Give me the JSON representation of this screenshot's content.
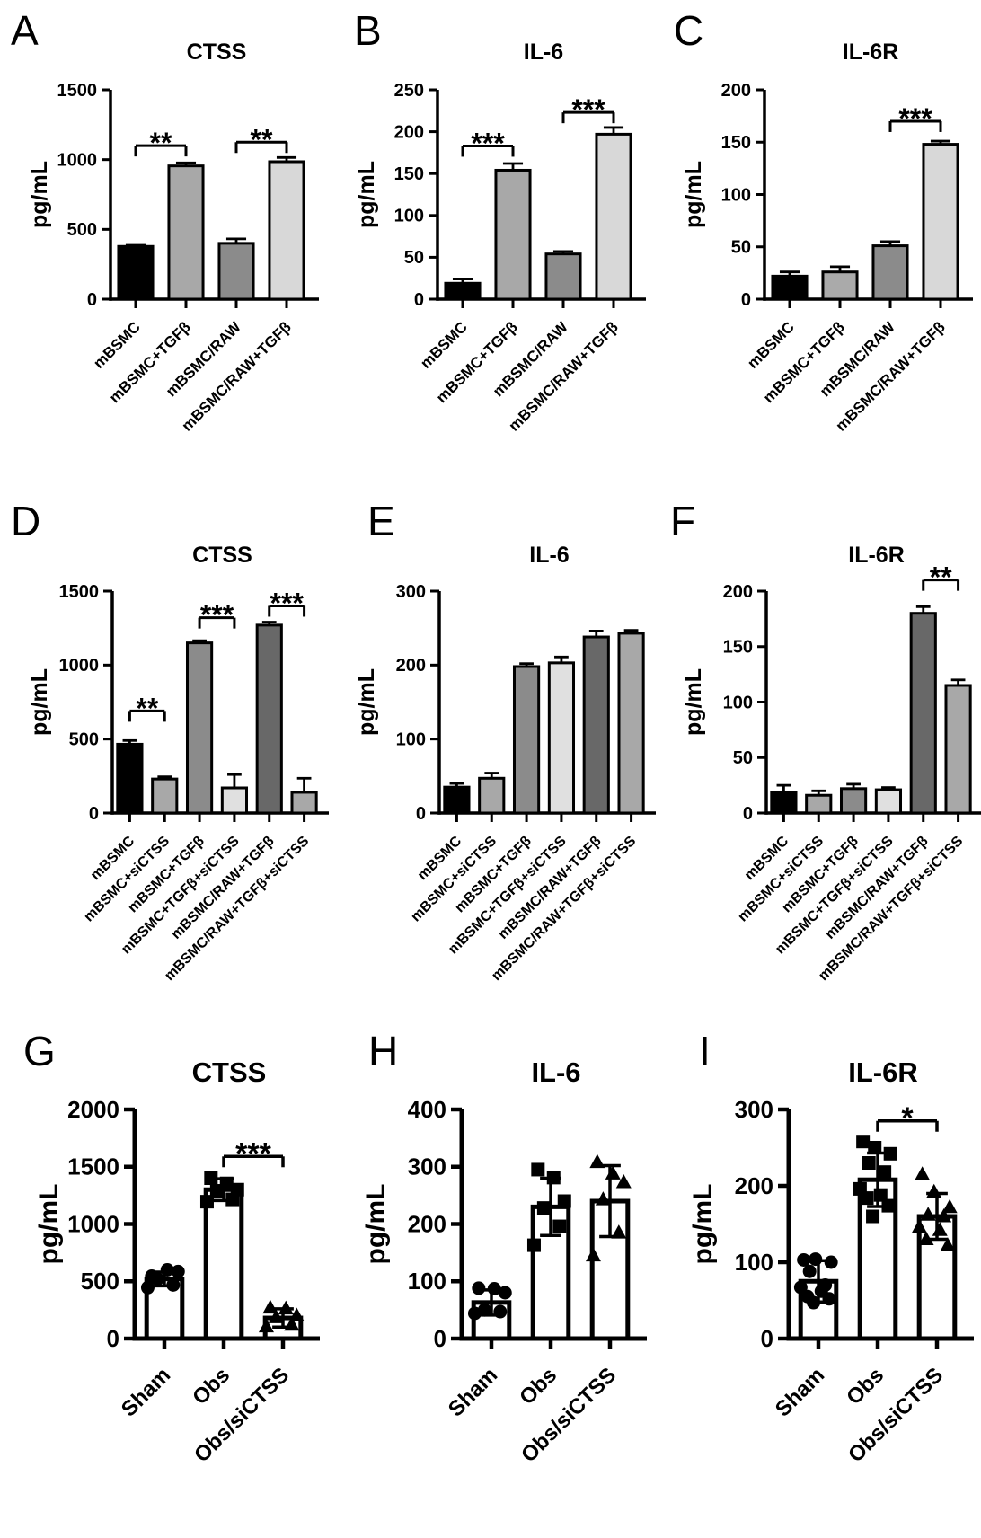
{
  "figure": {
    "background": "#ffffff",
    "text_color": "#000000",
    "y_axis_unit": "pg/mL"
  },
  "chart_data": [
    {
      "panel": "A",
      "type": "bar",
      "title": "CTSS",
      "ylabel": "pg/mL",
      "ylim": [
        0,
        1500
      ],
      "yticks": [
        0,
        500,
        1000,
        1500
      ],
      "grid": false,
      "legend": "none",
      "categories": [
        "mBSMC",
        "mBSMC+TGFβ",
        "mBSMC/RAW",
        "mBSMC/RAW+TGFβ"
      ],
      "values": [
        378,
        955,
        400,
        985
      ],
      "errors": [
        8,
        22,
        32,
        30
      ],
      "bar_colors": [
        "#000000",
        "#a8a8a8",
        "#8b8b8b",
        "#d8d8d8"
      ],
      "bar_style": "filled",
      "significance": [
        {
          "from": 0,
          "to": 1,
          "label": "**",
          "y": 1100
        },
        {
          "from": 2,
          "to": 3,
          "label": "**",
          "y": 1125
        }
      ]
    },
    {
      "panel": "B",
      "type": "bar",
      "title": "IL-6",
      "ylabel": "pg/mL",
      "ylim": [
        0,
        250
      ],
      "yticks": [
        0,
        50,
        100,
        150,
        200,
        250
      ],
      "grid": false,
      "legend": "none",
      "categories": [
        "mBSMC",
        "mBSMC+TGFβ",
        "mBSMC/RAW",
        "mBSMC/RAW+TGFβ"
      ],
      "values": [
        19,
        154,
        54,
        197
      ],
      "errors": [
        5,
        8,
        3,
        8
      ],
      "bar_colors": [
        "#000000",
        "#a8a8a8",
        "#8b8b8b",
        "#d8d8d8"
      ],
      "bar_style": "filled",
      "significance": [
        {
          "from": 0,
          "to": 1,
          "label": "***",
          "y": 183
        },
        {
          "from": 2,
          "to": 3,
          "label": "***",
          "y": 223
        }
      ]
    },
    {
      "panel": "C",
      "type": "bar",
      "title": "IL-6R",
      "ylabel": "pg/mL",
      "ylim": [
        0,
        200
      ],
      "yticks": [
        0,
        50,
        100,
        150,
        200
      ],
      "grid": false,
      "legend": "none",
      "categories": [
        "mBSMC",
        "mBSMC+TGFβ",
        "mBSMC/RAW",
        "mBSMC/RAW+TGFβ"
      ],
      "values": [
        22,
        26,
        51,
        148
      ],
      "errors": [
        4,
        5,
        4,
        3
      ],
      "bar_colors": [
        "#000000",
        "#aaaaaa",
        "#8b8b8b",
        "#d8d8d8"
      ],
      "bar_style": "filled",
      "significance": [
        {
          "from": 2,
          "to": 3,
          "label": "***",
          "y": 170
        }
      ]
    },
    {
      "panel": "D",
      "type": "bar",
      "title": "CTSS",
      "ylabel": "pg/mL",
      "ylim": [
        0,
        1500
      ],
      "yticks": [
        0,
        500,
        1000,
        1500
      ],
      "grid": false,
      "legend": "none",
      "categories": [
        "mBSMC",
        "mBSMC+siCTSS",
        "mBSMC+TGFβ",
        "mBSMC+TGFβ+siCTSS",
        "mBSMC/RAW+TGFβ",
        "mBSMC/RAW+TGFβ+siCTSS"
      ],
      "values": [
        465,
        230,
        1150,
        170,
        1270,
        140
      ],
      "errors": [
        25,
        15,
        15,
        90,
        20,
        95
      ],
      "bar_colors": [
        "#000000",
        "#a8a8a8",
        "#8b8b8b",
        "#e0e0e0",
        "#686868",
        "#a8a8a8"
      ],
      "bar_style": "filled",
      "significance": [
        {
          "from": 0,
          "to": 1,
          "label": "**",
          "y": 690
        },
        {
          "from": 2,
          "to": 3,
          "label": "***",
          "y": 1320
        },
        {
          "from": 4,
          "to": 5,
          "label": "***",
          "y": 1400
        }
      ]
    },
    {
      "panel": "E",
      "type": "bar",
      "title": "IL-6",
      "ylabel": "pg/mL",
      "ylim": [
        0,
        300
      ],
      "yticks": [
        0,
        100,
        200,
        300
      ],
      "grid": false,
      "legend": "none",
      "categories": [
        "mBSMC",
        "mBSMC+siCTSS",
        "mBSMC+TGFβ",
        "mBSMC+TGFβ+siCTSS",
        "mBSMC/RAW+TGFβ",
        "mBSMC/RAW+TGFβ+siCTSS"
      ],
      "values": [
        35,
        47,
        198,
        203,
        238,
        243
      ],
      "errors": [
        5,
        7,
        4,
        8,
        8,
        4
      ],
      "bar_colors": [
        "#000000",
        "#a8a8a8",
        "#8b8b8b",
        "#e0e0e0",
        "#686868",
        "#a8a8a8"
      ],
      "bar_style": "filled",
      "significance": []
    },
    {
      "panel": "F",
      "type": "bar",
      "title": "IL-6R",
      "ylabel": "pg/mL",
      "ylim": [
        0,
        200
      ],
      "yticks": [
        0,
        50,
        100,
        150,
        200
      ],
      "grid": false,
      "legend": "none",
      "categories": [
        "mBSMC",
        "mBSMC+siCTSS",
        "mBSMC+TGFβ",
        "mBSMC+TGFβ+siCTSS",
        "mBSMC/RAW+TGFβ",
        "mBSMC/RAW+TGFβ+siCTSS"
      ],
      "values": [
        19,
        16,
        22,
        21,
        180,
        115
      ],
      "errors": [
        6,
        4,
        4,
        2,
        6,
        5
      ],
      "bar_colors": [
        "#000000",
        "#a8a8a8",
        "#8b8b8b",
        "#e0e0e0",
        "#686868",
        "#a8a8a8"
      ],
      "bar_style": "filled",
      "significance": [
        {
          "from": 4,
          "to": 5,
          "label": "**",
          "y": 210
        }
      ]
    },
    {
      "panel": "G",
      "type": "bar",
      "title": "CTSS",
      "ylabel": "pg/mL",
      "ylim": [
        0,
        2000
      ],
      "yticks": [
        0,
        500,
        1000,
        1500,
        2000
      ],
      "grid": false,
      "legend": "none",
      "categories": [
        "Sham",
        "Obs",
        "Obs/siCTSS"
      ],
      "values": [
        520,
        1300,
        180
      ],
      "errors": [
        60,
        95,
        80
      ],
      "bar_colors": [
        "#ffffff",
        "#ffffff",
        "#ffffff"
      ],
      "bar_style": "outline",
      "markers": [
        "circle",
        "square",
        "triangle"
      ],
      "points": [
        [
          545,
          600,
          585,
          520,
          468,
          445
        ],
        [
          1400,
          1355,
          1300,
          1290,
          1215,
          1195
        ],
        [
          270,
          262,
          200,
          185,
          120,
          105
        ]
      ],
      "significance": [
        {
          "from": 1,
          "to": 2,
          "label": "***",
          "y": 1590
        }
      ]
    },
    {
      "panel": "H",
      "type": "bar",
      "title": "IL-6",
      "ylabel": "pg/mL",
      "ylim": [
        0,
        400
      ],
      "yticks": [
        0,
        100,
        200,
        300,
        400
      ],
      "grid": false,
      "legend": "none",
      "categories": [
        "Sham",
        "Obs",
        "Obs/siCTSS"
      ],
      "values": [
        63,
        230,
        240
      ],
      "errors": [
        22,
        50,
        62
      ],
      "bar_colors": [
        "#ffffff",
        "#ffffff",
        "#ffffff"
      ],
      "bar_style": "outline",
      "markers": [
        "circle",
        "square",
        "triangle"
      ],
      "points": [
        [
          88,
          87,
          80,
          50,
          47,
          44
        ],
        [
          295,
          281,
          240,
          228,
          196,
          163
        ],
        [
          308,
          288,
          273,
          243,
          185,
          145
        ]
      ],
      "significance": []
    },
    {
      "panel": "I",
      "type": "bar",
      "title": "IL-6R",
      "ylabel": "pg/mL",
      "ylim": [
        0,
        300
      ],
      "yticks": [
        0,
        100,
        200,
        300
      ],
      "grid": false,
      "legend": "none",
      "categories": [
        "Sham",
        "Obs",
        "Obs/siCTSS"
      ],
      "values": [
        75,
        208,
        160
      ],
      "errors": [
        27,
        35,
        30
      ],
      "bar_colors": [
        "#ffffff",
        "#ffffff",
        "#ffffff"
      ],
      "bar_style": "outline",
      "markers": [
        "circle",
        "square",
        "triangle"
      ],
      "points": [
        [
          103,
          104,
          100,
          88,
          70,
          67,
          62,
          55,
          52,
          47
        ],
        [
          258,
          250,
          242,
          230,
          218,
          196,
          188,
          184,
          174,
          160
        ],
        [
          215,
          192,
          172,
          162,
          160,
          146,
          142,
          130,
          122
        ]
      ],
      "significance": [
        {
          "from": 1,
          "to": 2,
          "label": "*",
          "y": 285
        }
      ]
    }
  ]
}
